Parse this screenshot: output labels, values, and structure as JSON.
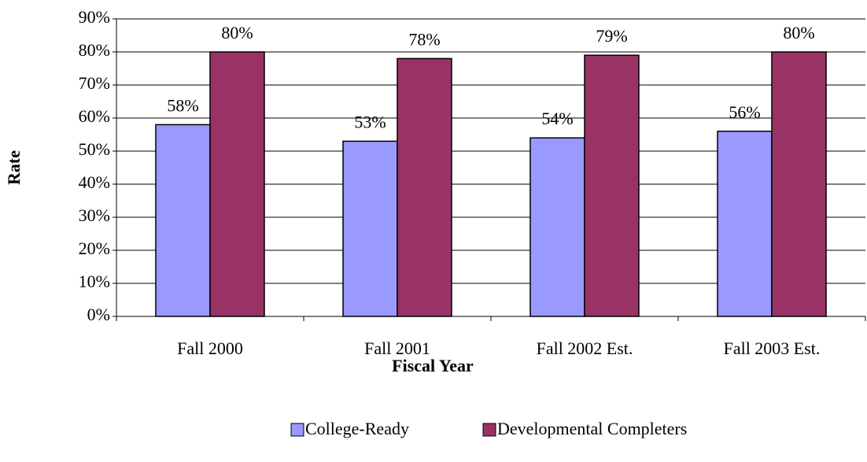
{
  "chart_data": {
    "type": "bar",
    "x_label": "Fiscal Year",
    "y_label": "Rate",
    "categories": [
      "Fall 2000",
      "Fall 2001",
      "Fall 2002 Est.",
      "Fall 2003 Est."
    ],
    "series": [
      {
        "name": "College-Ready",
        "color": "#9999ff",
        "values": [
          58,
          53,
          54,
          56
        ],
        "value_labels": [
          "58%",
          "53%",
          "54%",
          "56%"
        ]
      },
      {
        "name": "Developmental Completers",
        "color": "#993366",
        "values": [
          80,
          78,
          79,
          80
        ],
        "value_labels": [
          "80%",
          "78%",
          "79%",
          "80%"
        ]
      }
    ],
    "ylim": [
      0,
      90
    ],
    "yticks": [
      {
        "value": 0,
        "label": "0%"
      },
      {
        "value": 10,
        "label": "10%"
      },
      {
        "value": 20,
        "label": "20%"
      },
      {
        "value": 30,
        "label": "30%"
      },
      {
        "value": 40,
        "label": "40%"
      },
      {
        "value": 50,
        "label": "50%"
      },
      {
        "value": 60,
        "label": "60%"
      },
      {
        "value": 70,
        "label": "70%"
      },
      {
        "value": 80,
        "label": "80%"
      },
      {
        "value": 90,
        "label": "90%"
      }
    ],
    "grid": true,
    "legend": "bottom"
  }
}
